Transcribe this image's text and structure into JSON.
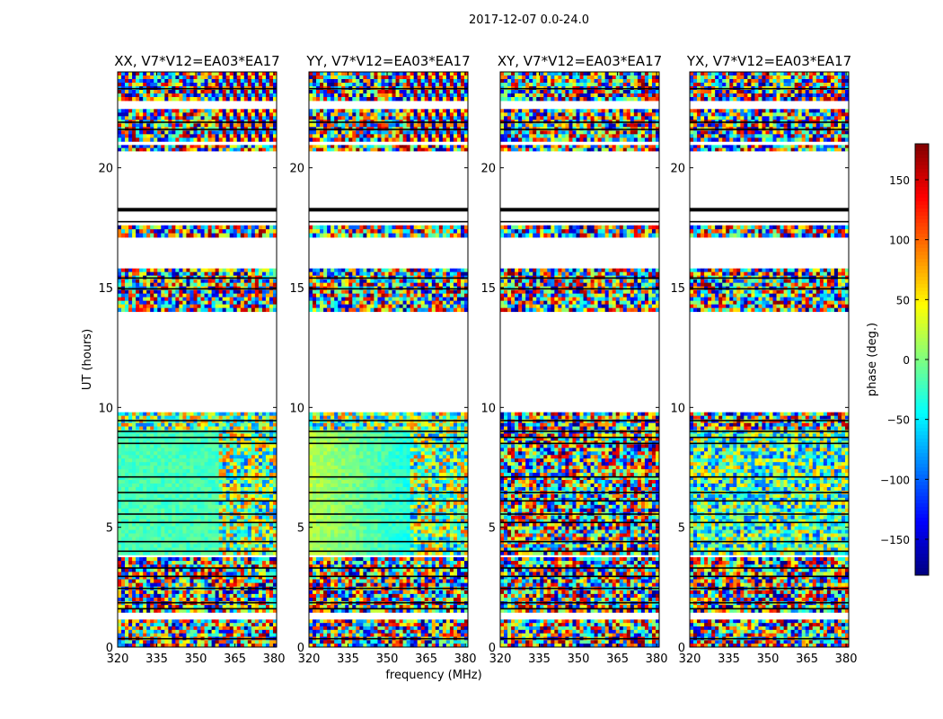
{
  "figure": {
    "suptitle": "2017-12-07 0.0-24.0"
  },
  "chart_data": {
    "type": "heatmap",
    "title": "2017-12-07 0.0-24.0",
    "xlabel": "frequency (MHz)",
    "ylabel": "UT (hours)",
    "xlim": [
      320,
      381
    ],
    "ylim": [
      0,
      24
    ],
    "xticks": [
      320,
      335,
      350,
      365,
      380
    ],
    "yticks": [
      0,
      5,
      10,
      15,
      20
    ],
    "panels": [
      {
        "title": "XX, V7*V12=EA03*EA17",
        "pol": "XX"
      },
      {
        "title": "YY, V7*V12=EA03*EA17",
        "pol": "YY"
      },
      {
        "title": "XY, V7*V12=EA03*EA17",
        "pol": "XY"
      },
      {
        "title": "YX, V7*V12=EA03*EA17",
        "pol": "YX"
      }
    ],
    "data_ranges_hours": [
      [
        0.0,
        1.15
      ],
      [
        1.45,
        3.75
      ],
      [
        3.85,
        9.8
      ],
      [
        14.0,
        15.8
      ],
      [
        17.1,
        17.6
      ],
      [
        20.7,
        20.95
      ],
      [
        21.1,
        22.45
      ],
      [
        22.8,
        24.0
      ]
    ],
    "flagged_lines_hours": [
      0.35,
      1.6,
      1.85,
      2.45,
      2.95,
      3.3,
      4.0,
      4.4,
      5.2,
      5.55,
      6.1,
      6.45,
      7.1,
      8.5,
      8.75,
      9.0,
      9.45,
      14.95,
      15.4,
      17.75,
      18.25,
      21.6,
      21.9,
      23.3
    ],
    "colorbar": {
      "label": "phase (deg.)",
      "range": [
        -180,
        180
      ],
      "ticks": [
        -150,
        -100,
        -50,
        0,
        50,
        100,
        150
      ],
      "tick_labels": [
        "−150",
        "−100",
        "−50",
        "0",
        "50",
        "100",
        "150"
      ],
      "colormap": "jet"
    }
  }
}
